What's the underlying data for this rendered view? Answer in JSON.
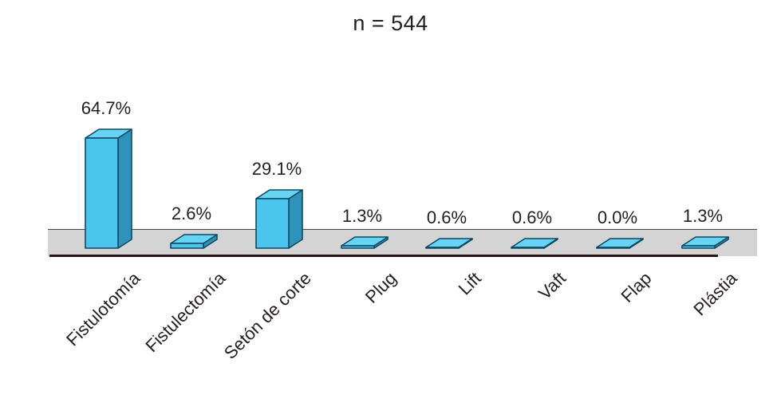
{
  "title": "n = 544",
  "colors": {
    "background": "#ffffff",
    "bar_front": "#4cc5ee",
    "bar_top": "#68d4f4",
    "bar_side": "#2e93bb",
    "bar_outline": "#0d4a63",
    "platform": "#d4d4d4",
    "platform_top_line": "#4f4444",
    "axis_line": "#2a1212",
    "text": "#231f20"
  },
  "chart_data": {
    "type": "bar",
    "style": "3d",
    "title": "n = 544",
    "categories": [
      "Fistulotomía",
      "Fistulectomía",
      "Setón de corte",
      "Plug",
      "Lift",
      "Vaft",
      "Flap",
      "Plástia"
    ],
    "values": [
      64.7,
      2.6,
      29.1,
      1.3,
      0.6,
      0.6,
      0.0,
      1.3
    ],
    "value_labels": [
      "64.7%",
      "2.6%",
      "29.1%",
      "1.3%",
      "0.6%",
      "0.6%",
      "0.0%",
      "1.3%"
    ],
    "unit": "%",
    "xlabel": "",
    "ylabel": "",
    "ylim": [
      0,
      70
    ],
    "grid": false,
    "legend": false,
    "category_label_rotation_deg": -45
  }
}
